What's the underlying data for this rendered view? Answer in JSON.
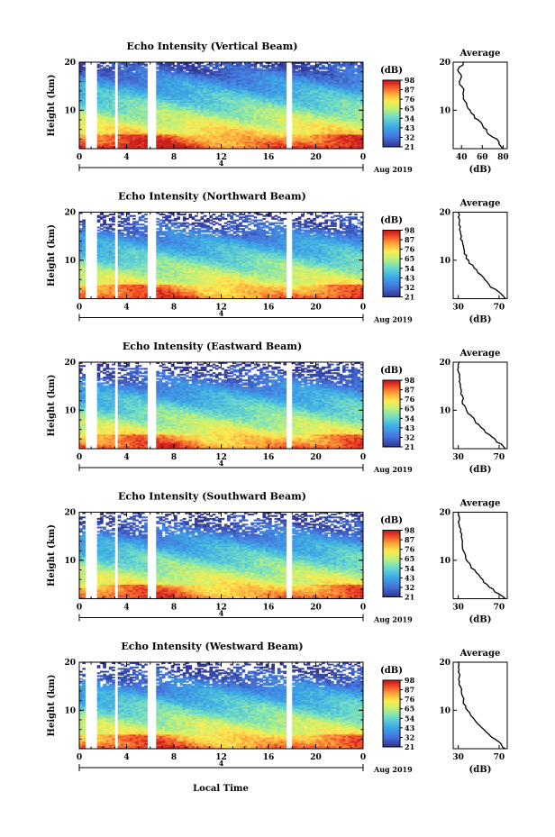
{
  "figure": {
    "common_xlabel": "Local Time",
    "date_label": "Aug 2019",
    "day_label": "4",
    "cbar_unit": "(dB)",
    "profile_title": "Average",
    "profile_xlabel": "(dB)"
  },
  "chart_data": [
    {
      "type": "heatmap",
      "title": "Echo Intensity (Vertical Beam)",
      "ylabel": "Height (km)",
      "xlabel": "Local Time",
      "xlim": [
        0,
        24
      ],
      "xticks": [
        "0",
        "4",
        "8",
        "12",
        "16",
        "20",
        "0"
      ],
      "ylim": [
        2,
        20
      ],
      "yticks": [
        "10",
        "20"
      ],
      "colorbar": {
        "unit": "(dB)",
        "ticks": [
          "21",
          "32",
          "43",
          "54",
          "65",
          "76",
          "87",
          "98"
        ]
      },
      "data_gaps_hours": [
        [
          0.5,
          1.6
        ],
        [
          3.0,
          3.3
        ],
        [
          5.8,
          6.4
        ],
        [
          17.6,
          17.9
        ]
      ],
      "profile": {
        "title": "Average",
        "xlabel": "(dB)",
        "xticks": [
          "40",
          "60",
          "80"
        ],
        "xlim": [
          32,
          84
        ],
        "height": [
          2,
          3,
          4,
          5,
          6,
          7,
          8,
          9,
          10,
          11,
          12,
          13,
          14,
          15,
          16,
          17,
          18,
          19,
          20
        ],
        "mean_db": [
          80,
          76,
          74,
          66,
          64,
          60,
          56,
          52,
          48,
          45,
          43,
          42,
          42,
          40,
          38,
          40,
          37,
          38,
          42
        ]
      }
    },
    {
      "type": "heatmap",
      "title": "Echo Intensity (Northward Beam)",
      "ylabel": "Height (km)",
      "xlabel": "Local Time",
      "xlim": [
        0,
        24
      ],
      "xticks": [
        "0",
        "4",
        "8",
        "12",
        "16",
        "20",
        "0"
      ],
      "ylim": [
        2,
        20
      ],
      "yticks": [
        "10",
        "20"
      ],
      "colorbar": {
        "unit": "(dB)",
        "ticks": [
          "21",
          "32",
          "43",
          "54",
          "65",
          "76",
          "87",
          "98"
        ]
      },
      "data_gaps_hours": [
        [
          0.5,
          1.6
        ],
        [
          3.0,
          3.3
        ],
        [
          5.8,
          6.4
        ],
        [
          17.6,
          17.9
        ]
      ],
      "profile": {
        "title": "Average",
        "xlabel": "(dB)",
        "xticks": [
          "30",
          "70"
        ],
        "xlim": [
          25,
          78
        ],
        "height": [
          2,
          3,
          4,
          5,
          6,
          7,
          8,
          9,
          10,
          11,
          12,
          13,
          14,
          15,
          16,
          17,
          18,
          19,
          20
        ],
        "mean_db": [
          76,
          72,
          66,
          60,
          56,
          52,
          48,
          44,
          40,
          38,
          36,
          35,
          34,
          33,
          32,
          32,
          31,
          30,
          30
        ]
      }
    },
    {
      "type": "heatmap",
      "title": "Echo Intensity (Eastward Beam)",
      "ylabel": "Height (km)",
      "xlabel": "Local Time",
      "xlim": [
        0,
        24
      ],
      "xticks": [
        "0",
        "4",
        "8",
        "12",
        "16",
        "20",
        "0"
      ],
      "ylim": [
        2,
        20
      ],
      "yticks": [
        "10",
        "20"
      ],
      "colorbar": {
        "unit": "(dB)",
        "ticks": [
          "21",
          "32",
          "43",
          "54",
          "65",
          "76",
          "87",
          "98"
        ]
      },
      "data_gaps_hours": [
        [
          0.5,
          1.6
        ],
        [
          3.0,
          3.3
        ],
        [
          5.8,
          6.4
        ],
        [
          17.6,
          17.9
        ]
      ],
      "profile": {
        "title": "Average",
        "xlabel": "(dB)",
        "xticks": [
          "30",
          "70"
        ],
        "xlim": [
          25,
          78
        ],
        "height": [
          2,
          3,
          4,
          5,
          6,
          7,
          8,
          9,
          10,
          11,
          12,
          13,
          14,
          15,
          16,
          17,
          18,
          19,
          20
        ],
        "mean_db": [
          76,
          72,
          66,
          60,
          55,
          50,
          46,
          42,
          38,
          36,
          34,
          34,
          33,
          32,
          31,
          31,
          30,
          30,
          31
        ]
      }
    },
    {
      "type": "heatmap",
      "title": "Echo Intensity (Southward Beam)",
      "ylabel": "Height (km)",
      "xlabel": "Local Time",
      "xlim": [
        0,
        24
      ],
      "xticks": [
        "0",
        "4",
        "8",
        "12",
        "16",
        "20",
        "0"
      ],
      "ylim": [
        2,
        20
      ],
      "yticks": [
        "10",
        "20"
      ],
      "colorbar": {
        "unit": "(dB)",
        "ticks": [
          "21",
          "32",
          "43",
          "54",
          "65",
          "76",
          "87",
          "98"
        ]
      },
      "data_gaps_hours": [
        [
          0.5,
          1.6
        ],
        [
          3.0,
          3.3
        ],
        [
          5.8,
          6.4
        ],
        [
          17.6,
          17.9
        ]
      ],
      "profile": {
        "title": "Average",
        "xlabel": "(dB)",
        "xticks": [
          "30",
          "70"
        ],
        "xlim": [
          25,
          78
        ],
        "height": [
          2,
          3,
          4,
          5,
          6,
          7,
          8,
          9,
          10,
          11,
          12,
          13,
          14,
          15,
          16,
          17,
          18,
          19,
          20
        ],
        "mean_db": [
          76,
          70,
          64,
          58,
          54,
          50,
          46,
          42,
          38,
          37,
          35,
          34,
          34,
          33,
          32,
          31,
          30,
          31,
          30
        ]
      }
    },
    {
      "type": "heatmap",
      "title": "Echo Intensity (Westward Beam)",
      "ylabel": "Height (km)",
      "xlabel": "Local Time",
      "xlim": [
        0,
        24
      ],
      "xticks": [
        "0",
        "4",
        "8",
        "12",
        "16",
        "20",
        "0"
      ],
      "ylim": [
        2,
        20
      ],
      "yticks": [
        "10",
        "20"
      ],
      "colorbar": {
        "unit": "(dB)",
        "ticks": [
          "21",
          "32",
          "43",
          "54",
          "65",
          "76",
          "87",
          "98"
        ]
      },
      "data_gaps_hours": [
        [
          0.5,
          1.6
        ],
        [
          3.0,
          3.3
        ],
        [
          5.8,
          6.4
        ],
        [
          17.6,
          17.9
        ]
      ],
      "profile": {
        "title": "Average",
        "xlabel": "(dB)",
        "xticks": [
          "30",
          "70"
        ],
        "xlim": [
          25,
          78
        ],
        "height": [
          2,
          3,
          4,
          5,
          6,
          7,
          8,
          9,
          10,
          11,
          12,
          13,
          14,
          15,
          16,
          17,
          18,
          19,
          20
        ],
        "mean_db": [
          76,
          72,
          66,
          60,
          55,
          50,
          46,
          42,
          39,
          37,
          35,
          34,
          33,
          32,
          31,
          31,
          30,
          30,
          30
        ]
      }
    }
  ]
}
